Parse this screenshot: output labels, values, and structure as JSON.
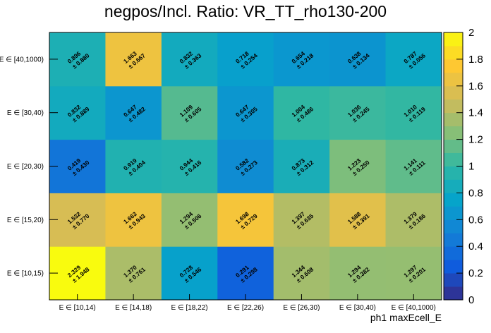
{
  "chart_data": {
    "type": "heatmap",
    "title": "negpos/Incl. Ratio: VR_TT_rho130-200",
    "xlabel": "ph1 maxEcell_E",
    "ylabel": "",
    "x_categories": [
      "E ∈ [10,14)",
      "E ∈ [14,18)",
      "E ∈ [18,22)",
      "E ∈ [22,26)",
      "E ∈ [26,30)",
      "E ∈ [30,40)",
      "E ∈ [40,1000)"
    ],
    "y_categories": [
      "E ∈ [10,15)",
      "E ∈ [15,20)",
      "E ∈ [20,30)",
      "E ∈ [30,40)",
      "E ∈ [40,1000)"
    ],
    "zlim": [
      0,
      2
    ],
    "z_ticks": [
      "0",
      "0.2",
      "0.4",
      "0.6",
      "0.8",
      "1",
      "1.2",
      "1.4",
      "1.6",
      "1.8",
      "2"
    ],
    "values": [
      [
        2.329,
        1.37,
        0.728,
        0.291,
        1.344,
        1.294,
        1.297
      ],
      [
        1.532,
        1.663,
        1.294,
        1.698,
        1.397,
        1.588,
        1.379
      ],
      [
        0.419,
        0.919,
        0.944,
        0.582,
        0.873,
        1.223,
        1.141
      ],
      [
        0.832,
        0.647,
        1.109,
        0.647,
        1.004,
        1.036,
        1.01
      ],
      [
        0.896,
        1.663,
        0.832,
        0.718,
        0.654,
        0.638,
        0.787
      ]
    ],
    "labels": [
      [
        "2.329",
        "1.370",
        "0.728",
        "0.291",
        "1.344",
        "1.294",
        "1.297"
      ],
      [
        "1.532",
        "1.663",
        "1.294",
        "1.698",
        "1.397",
        "1.588",
        "1.379"
      ],
      [
        "0.419",
        "0.919",
        "0.944",
        "0.582",
        "0.873",
        "1.223",
        "1.141"
      ],
      [
        "0.832",
        "0.647",
        "1.109",
        "0.647",
        "1.004",
        "1.036",
        "1.010"
      ],
      [
        "0.896",
        "1.663",
        "0.832",
        "0.718",
        "0.654",
        "0.638",
        "0.787"
      ]
    ],
    "errors": [
      [
        "± 1.948",
        "± 0.761",
        "± 0.546",
        "± 0.298",
        "± 0.608",
        "± 0.382",
        "± 0.201"
      ],
      [
        "± 0.770",
        "± 0.943",
        "± 0.506",
        "± 0.729",
        "± 0.635",
        "± 0.391",
        "± 0.186"
      ],
      [
        "± 0.430",
        "± 0.404",
        "± 0.416",
        "± 0.273",
        "± 0.312",
        "± 0.250",
        "± 0.111"
      ],
      [
        "± 0.889",
        "± 0.482",
        "± 0.605",
        "± 0.305",
        "± 0.486",
        "± 0.245",
        "± 0.119"
      ],
      [
        "± 0.880",
        "± 0.667",
        "± 0.363",
        "± 0.254",
        "± 0.218",
        "± 0.134",
        "± 0.056"
      ]
    ],
    "palette": [
      "#352a87",
      "#0f5cdd",
      "#1481d6",
      "#06a4ca",
      "#2eb7a4",
      "#87bf77",
      "#d1bb59",
      "#fec832",
      "#f9fb0e"
    ]
  }
}
